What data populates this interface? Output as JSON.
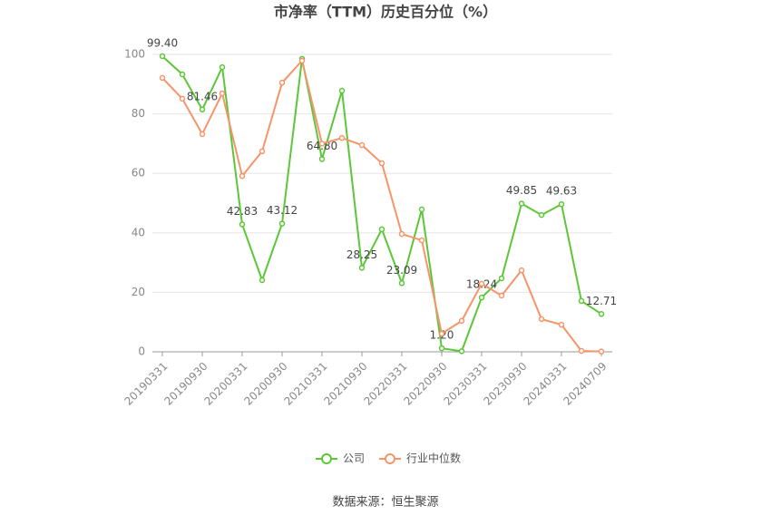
{
  "chart_data": {
    "type": "line",
    "title": "市净率（TTM）历史百分位（%）",
    "source": "数据来源：恒生聚源",
    "categories": [
      "20190331",
      null,
      "20190930",
      null,
      "20200331",
      null,
      "20200930",
      null,
      "20210331",
      null,
      "20210930",
      null,
      "20220331",
      null,
      "20220930",
      null,
      "20230331",
      null,
      "20230930",
      null,
      "20240331",
      null,
      "20240709"
    ],
    "series": [
      {
        "name": "公司",
        "color": "#5cc639",
        "values": [
          99.4,
          93.3,
          81.46,
          95.7,
          42.83,
          24.1,
          43.12,
          98.5,
          64.8,
          87.8,
          28.25,
          41.2,
          23.09,
          47.9,
          1.2,
          0.2,
          18.24,
          24.7,
          49.85,
          46.0,
          49.63,
          17.1,
          12.71
        ],
        "value_labels": [
          "99.40",
          null,
          "81.46",
          null,
          "42.83",
          null,
          "43.12",
          null,
          "64.80",
          null,
          "28.25",
          null,
          "23.09",
          null,
          "1.20",
          null,
          "18.24",
          null,
          "49.85",
          null,
          "49.63",
          null,
          "12.71"
        ]
      },
      {
        "name": "行业中位数",
        "color": "#f4956a",
        "values": [
          92.1,
          85.1,
          73.2,
          86.9,
          59.1,
          67.4,
          90.5,
          97.9,
          70.0,
          71.9,
          69.5,
          63.4,
          39.6,
          37.5,
          6.1,
          10.4,
          22.9,
          18.9,
          27.4,
          11.0,
          9.1,
          0.3,
          0.1
        ]
      }
    ],
    "ylim": [
      0,
      100
    ],
    "yticks": [
      0,
      20,
      40,
      60,
      80,
      100
    ],
    "grid": true
  }
}
